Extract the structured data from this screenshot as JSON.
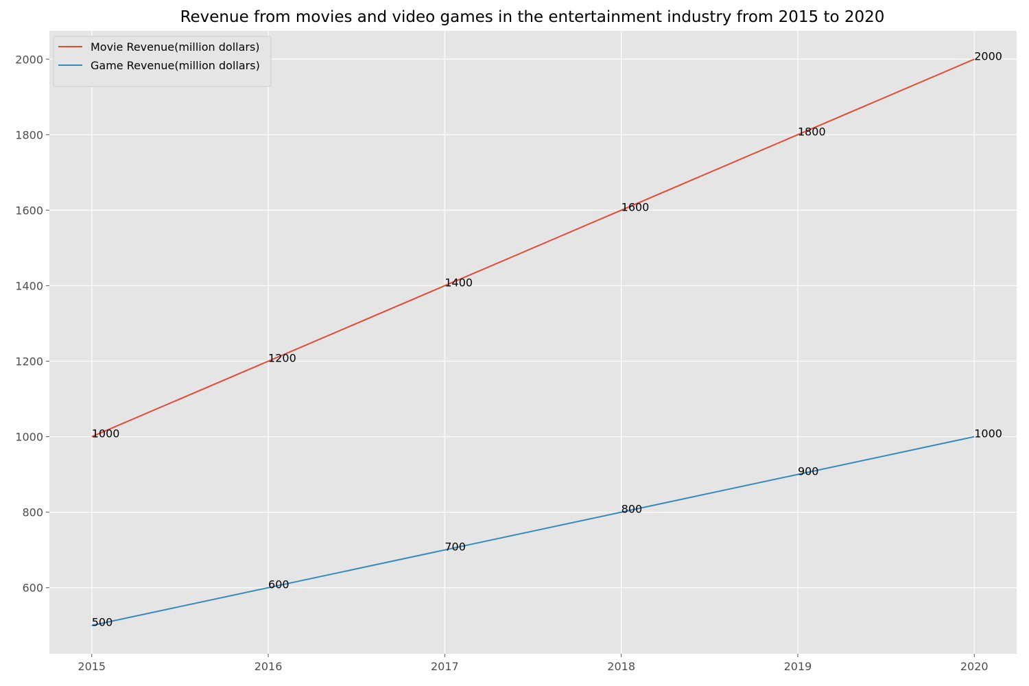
{
  "chart_data": {
    "type": "line",
    "title": "Revenue from movies and video games in the entertainment industry from 2015 to 2020",
    "xlabel": "",
    "ylabel": "",
    "x": [
      2015,
      2016,
      2017,
      2018,
      2019,
      2020
    ],
    "xlim": [
      2014.76,
      2020.24
    ],
    "ylim": [
      425,
      2075
    ],
    "yticks": [
      600,
      800,
      1000,
      1200,
      1400,
      1600,
      1800,
      2000
    ],
    "grid": true,
    "legend_position": "top-left",
    "series": [
      {
        "name": "Movie Revenue(million dollars)",
        "color": "#E24A33",
        "values": [
          1000,
          1200,
          1400,
          1600,
          1800,
          2000
        ]
      },
      {
        "name": "Game Revenue(million dollars)",
        "color": "#348ABD",
        "values": [
          500,
          600,
          700,
          800,
          900,
          1000
        ]
      }
    ],
    "data_labels": true
  }
}
